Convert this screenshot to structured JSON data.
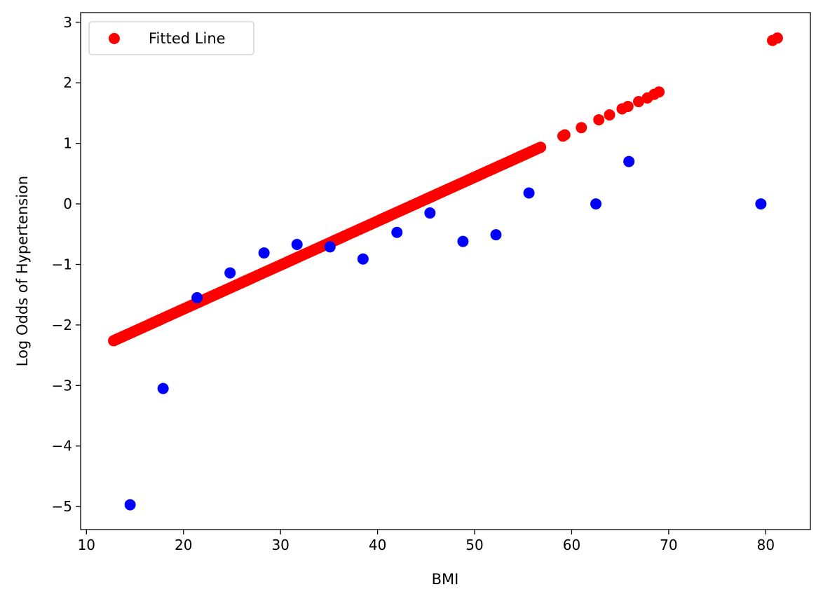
{
  "chart_data": {
    "type": "scatter",
    "xlabel": "BMI",
    "ylabel": "Log Odds of Hypertension",
    "xlim": [
      9.4,
      84.6
    ],
    "ylim": [
      -5.38,
      3.16
    ],
    "xticks": [
      10,
      20,
      30,
      40,
      50,
      60,
      70,
      80
    ],
    "yticks": [
      -5,
      -4,
      -3,
      -2,
      -1,
      0,
      1,
      2,
      3
    ],
    "grid": false,
    "legend_position": "top-left",
    "colors": {
      "fitted": "#ff0000",
      "observed": "#0000ff"
    },
    "series": [
      {
        "name": "Fitted Line",
        "color": "#ff0000",
        "line": {
          "slope": 0.07263,
          "intercept": -3.19,
          "x_start": 12.8,
          "x_end": 56.8
        },
        "points": [
          [
            59.1,
            1.12
          ],
          [
            59.3,
            1.14
          ],
          [
            61.0,
            1.26
          ],
          [
            62.8,
            1.39
          ],
          [
            63.9,
            1.47
          ],
          [
            65.2,
            1.57
          ],
          [
            65.8,
            1.61
          ],
          [
            66.9,
            1.69
          ],
          [
            67.8,
            1.75
          ],
          [
            68.5,
            1.81
          ],
          [
            69.0,
            1.85
          ],
          [
            80.7,
            2.7
          ],
          [
            81.2,
            2.74
          ]
        ]
      },
      {
        "color": "#0000ff",
        "points": [
          [
            14.5,
            -4.97
          ],
          [
            17.9,
            -3.05
          ],
          [
            21.4,
            -1.55
          ],
          [
            24.8,
            -1.14
          ],
          [
            28.3,
            -0.81
          ],
          [
            31.7,
            -0.67
          ],
          [
            35.1,
            -0.71
          ],
          [
            38.5,
            -0.91
          ],
          [
            42.0,
            -0.47
          ],
          [
            45.4,
            -0.15
          ],
          [
            48.8,
            -0.62
          ],
          [
            52.2,
            -0.51
          ],
          [
            55.6,
            0.18
          ],
          [
            62.5,
            0.0
          ],
          [
            65.9,
            0.7
          ],
          [
            79.5,
            0.0
          ]
        ]
      }
    ]
  }
}
